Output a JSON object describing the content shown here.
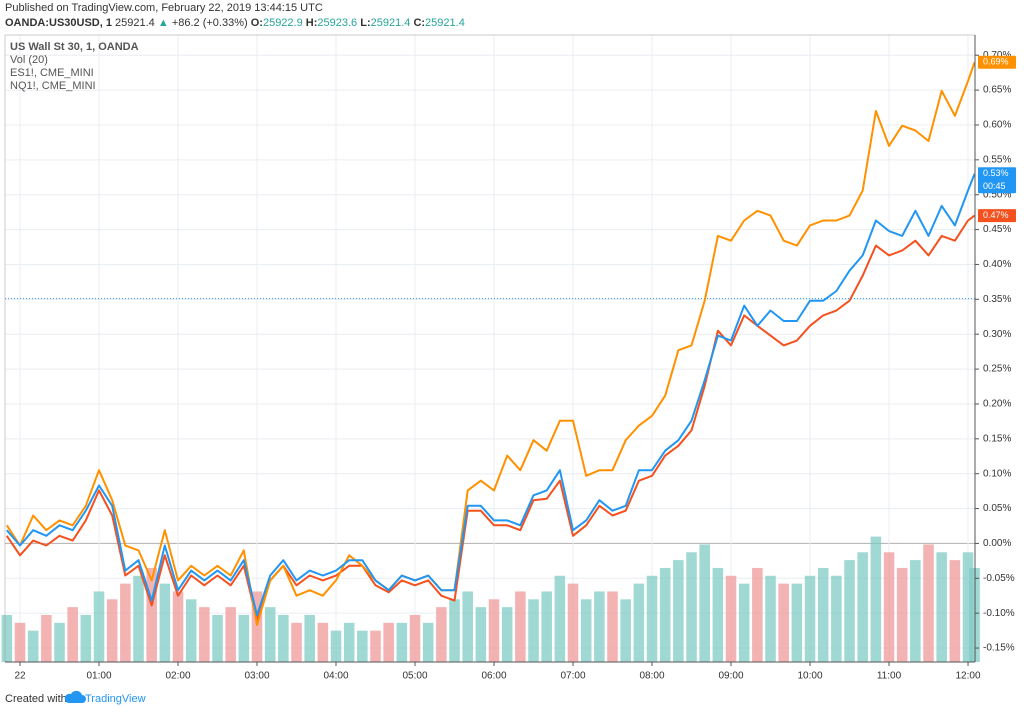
{
  "header": {
    "published": "Published on TradingView.com, February 22, 2019 13:44:15 UTC",
    "symbol": "OANDA:US30USD, 1",
    "last": "25921.4",
    "arrow": "▲",
    "change": "+86.2 (+0.33%)",
    "o_label": "O:",
    "o": "25922.9",
    "h_label": "H:",
    "h": "25923.6",
    "l_label": "L:",
    "l": "25921.4",
    "c_label": "C:",
    "c": "25921.4"
  },
  "footer": {
    "created": "Created with",
    "brand": "TradingView"
  },
  "chart_data": {
    "type": "line",
    "x": [
      -10,
      0,
      10,
      20,
      30,
      40,
      50,
      60,
      70,
      80,
      90,
      100,
      110,
      120,
      130,
      140,
      150,
      160,
      170,
      180,
      190,
      200,
      210,
      220,
      230,
      240,
      250,
      260,
      270,
      280,
      290,
      300,
      310,
      320,
      330,
      340,
      350,
      360,
      370,
      380,
      390,
      400,
      410,
      420,
      430,
      440,
      450,
      460,
      470,
      480,
      490,
      500,
      510,
      520,
      530,
      540,
      550,
      560,
      570,
      580,
      590,
      600,
      610,
      620,
      630,
      640,
      650,
      660,
      670,
      680,
      690,
      700,
      710,
      720,
      725
    ],
    "xlim": [
      -11.4,
      725.3
    ],
    "xticks": [
      {
        "value": 0,
        "label": "22"
      },
      {
        "value": 60,
        "label": "01:00"
      },
      {
        "value": 120,
        "label": "02:00"
      },
      {
        "value": 180,
        "label": "03:00"
      },
      {
        "value": 240,
        "label": "04:00"
      },
      {
        "value": 300,
        "label": "05:00"
      },
      {
        "value": 360,
        "label": "06:00"
      },
      {
        "value": 420,
        "label": "07:00"
      },
      {
        "value": 480,
        "label": "08:00"
      },
      {
        "value": 540,
        "label": "09:00"
      },
      {
        "value": 600,
        "label": "10:00"
      },
      {
        "value": 660,
        "label": "11:00"
      },
      {
        "value": 720,
        "label": "12:00"
      }
    ],
    "ylim": [
      -0.17,
      0.729
    ],
    "yticks": [
      {
        "value": 0.7,
        "label": "0.70%"
      },
      {
        "value": 0.65,
        "label": "0.65%"
      },
      {
        "value": 0.6,
        "label": "0.60%"
      },
      {
        "value": 0.55,
        "label": "0.55%"
      },
      {
        "value": 0.5,
        "label": "0.50%"
      },
      {
        "value": 0.45,
        "label": "0.45%"
      },
      {
        "value": 0.4,
        "label": "0.40%"
      },
      {
        "value": 0.35,
        "label": "0.35%"
      },
      {
        "value": 0.3,
        "label": "0.30%"
      },
      {
        "value": 0.25,
        "label": "0.25%"
      },
      {
        "value": 0.2,
        "label": "0.20%"
      },
      {
        "value": 0.15,
        "label": "0.15%"
      },
      {
        "value": 0.1,
        "label": "0.10%"
      },
      {
        "value": 0.05,
        "label": "0.05%"
      },
      {
        "value": 0,
        "label": "0.00%"
      },
      {
        "value": -0.05,
        "label": "-0.05%"
      },
      {
        "value": -0.1,
        "label": "-0.10%"
      },
      {
        "value": -0.15,
        "label": "-0.15%"
      }
    ],
    "grid": true,
    "price_line": 0.351,
    "countdown": "00:45",
    "series": [
      {
        "name": "US Wall St 30, 1, OANDA",
        "color": "#2196f3",
        "last_label": "0.53%",
        "values": [
          0.019,
          -0.003,
          0.019,
          0.011,
          0.026,
          0.019,
          0.047,
          0.083,
          0.054,
          -0.039,
          -0.024,
          -0.082,
          -0.003,
          -0.067,
          -0.039,
          -0.053,
          -0.039,
          -0.053,
          -0.024,
          -0.103,
          -0.046,
          -0.024,
          -0.053,
          -0.039,
          -0.046,
          -0.039,
          -0.024,
          -0.024,
          -0.053,
          -0.067,
          -0.046,
          -0.053,
          -0.046,
          -0.067,
          -0.067,
          0.054,
          0.054,
          0.033,
          0.033,
          0.026,
          0.069,
          0.076,
          0.105,
          0.019,
          0.033,
          0.062,
          0.047,
          0.054,
          0.105,
          0.105,
          0.133,
          0.148,
          0.176,
          0.234,
          0.298,
          0.291,
          0.341,
          0.312,
          0.334,
          0.319,
          0.319,
          0.348,
          0.348,
          0.362,
          0.391,
          0.413,
          0.463,
          0.448,
          0.441,
          0.477,
          0.441,
          0.484,
          0.456,
          0.506,
          0.53
        ]
      },
      {
        "name": "ES1!, CME_MINI",
        "color": "#ff9100",
        "last_label": "0.69%",
        "values": [
          0.026,
          -0.003,
          0.04,
          0.019,
          0.033,
          0.026,
          0.054,
          0.105,
          0.062,
          -0.003,
          -0.01,
          -0.053,
          0.019,
          -0.053,
          -0.032,
          -0.046,
          -0.032,
          -0.046,
          -0.01,
          -0.117,
          -0.053,
          -0.032,
          -0.075,
          -0.067,
          -0.075,
          -0.053,
          -0.017,
          -0.032,
          -0.053,
          -0.067,
          -0.046,
          -0.053,
          -0.046,
          -0.067,
          -0.067,
          0.076,
          0.09,
          0.076,
          0.126,
          0.105,
          0.148,
          0.133,
          0.176,
          0.176,
          0.097,
          0.105,
          0.105,
          0.148,
          0.169,
          0.183,
          0.212,
          0.277,
          0.284,
          0.348,
          0.441,
          0.434,
          0.463,
          0.477,
          0.47,
          0.434,
          0.427,
          0.456,
          0.463,
          0.463,
          0.47,
          0.506,
          0.62,
          0.57,
          0.599,
          0.592,
          0.577,
          0.649,
          0.613,
          0.663,
          0.69
        ]
      },
      {
        "name": "NQ1!, CME_MINI",
        "color": "#f4511e",
        "last_label": "0.47%",
        "values": [
          0.011,
          -0.017,
          0.004,
          -0.003,
          0.011,
          0.004,
          0.033,
          0.076,
          0.04,
          -0.046,
          -0.032,
          -0.089,
          -0.017,
          -0.075,
          -0.046,
          -0.06,
          -0.046,
          -0.06,
          -0.032,
          -0.11,
          -0.053,
          -0.032,
          -0.06,
          -0.046,
          -0.053,
          -0.046,
          -0.032,
          -0.032,
          -0.06,
          -0.07,
          -0.053,
          -0.06,
          -0.053,
          -0.075,
          -0.082,
          0.047,
          0.047,
          0.026,
          0.026,
          0.019,
          0.062,
          0.064,
          0.09,
          0.011,
          0.026,
          0.054,
          0.04,
          0.047,
          0.09,
          0.097,
          0.126,
          0.14,
          0.162,
          0.226,
          0.305,
          0.284,
          0.327,
          0.312,
          0.298,
          0.284,
          0.291,
          0.312,
          0.327,
          0.334,
          0.348,
          0.384,
          0.427,
          0.413,
          0.42,
          0.434,
          0.413,
          0.441,
          0.434,
          0.463,
          0.47
        ]
      }
    ],
    "volume": {
      "name": "Vol (20)",
      "up_color": "#80cbc4",
      "down_color": "#ef9a9a",
      "vlim": [
        0,
        400
      ],
      "values": [
        30,
        25,
        20,
        30,
        25,
        35,
        30,
        45,
        40,
        50,
        55,
        60,
        50,
        45,
        40,
        35,
        30,
        35,
        30,
        45,
        35,
        30,
        25,
        30,
        25,
        20,
        25,
        20,
        20,
        25,
        25,
        30,
        25,
        35,
        40,
        45,
        35,
        40,
        35,
        45,
        40,
        45,
        55,
        50,
        40,
        45,
        45,
        40,
        50,
        55,
        60,
        65,
        70,
        75,
        60,
        55,
        50,
        60,
        55,
        50,
        50,
        55,
        60,
        55,
        65,
        70,
        80,
        70,
        60,
        65,
        75,
        70,
        65,
        70,
        60
      ]
    }
  }
}
